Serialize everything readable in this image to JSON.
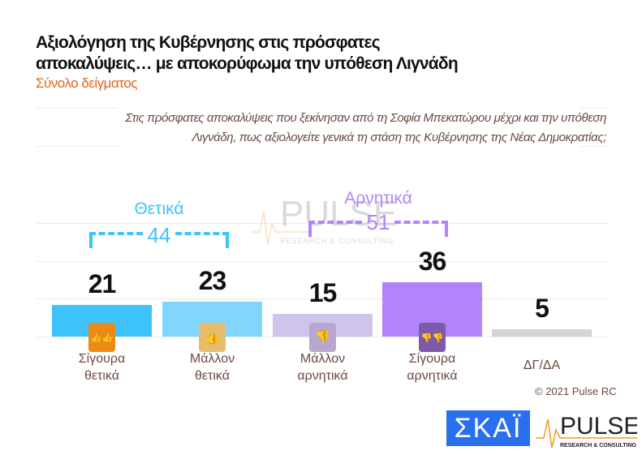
{
  "header": {
    "title_line1": "Αξιολόγηση της Κυβέρνησης στις πρόσφατες",
    "title_line2": "αποκαλύψεις… με αποκορύφωμα την υπόθεση Λιγνάδη",
    "subtitle": "Σύνολο δείγματος"
  },
  "question": "Στις πρόσφατες αποκαλύψεις που ξεκίνησαν από τη Σοφία Μπεκατώρου μέχρι και την υπόθεση Λιγνάδη, πως αξιολογείτε γενικά τη στάση της Κυβέρνησης της Νέας Δημοκρατίας;",
  "chart_data": {
    "type": "bar",
    "categories": [
      "Σίγουρα θετικά",
      "Μάλλον θετικά",
      "Μάλλον αρνητικά",
      "Σίγουρα αρνητικά",
      "ΔΓ/ΔΑ"
    ],
    "category_lines": [
      [
        "Σίγουρα",
        "θετικά"
      ],
      [
        "Μάλλον",
        "θετικά"
      ],
      [
        "Μάλλον",
        "αρνητικά"
      ],
      [
        "Σίγουρα",
        "αρνητικά"
      ],
      [
        "ΔΓ/ΔΑ",
        ""
      ]
    ],
    "values": [
      21,
      23,
      15,
      36,
      5
    ],
    "colors": [
      "#3ec3fb",
      "#80d6fd",
      "#cfc4ea",
      "#b184fb",
      "#d4d4d4"
    ],
    "icons": [
      "double-thumbs-up-icon",
      "thumbs-up-icon",
      "thumbs-down-icon",
      "double-thumbs-down-icon",
      null
    ],
    "icon_colors": [
      "#ec8a16",
      "#e6bd6f",
      "#b7a8d0",
      "#7e5aab",
      null
    ],
    "groups": [
      {
        "name": "Θετικά",
        "total": 44,
        "color": "#3ec3fb"
      },
      {
        "name": "Αρνητικά",
        "total": 51,
        "color": "#b184fb"
      }
    ],
    "ylim": [
      0,
      60
    ],
    "grid": true
  },
  "footer": {
    "copyright": "© 2021 Pulse RC",
    "logo_skai": "ΣΚΑΪ",
    "logo_pulse": "PULSE",
    "logo_pulse_sub": "RESEARCH & CONSULTING"
  }
}
